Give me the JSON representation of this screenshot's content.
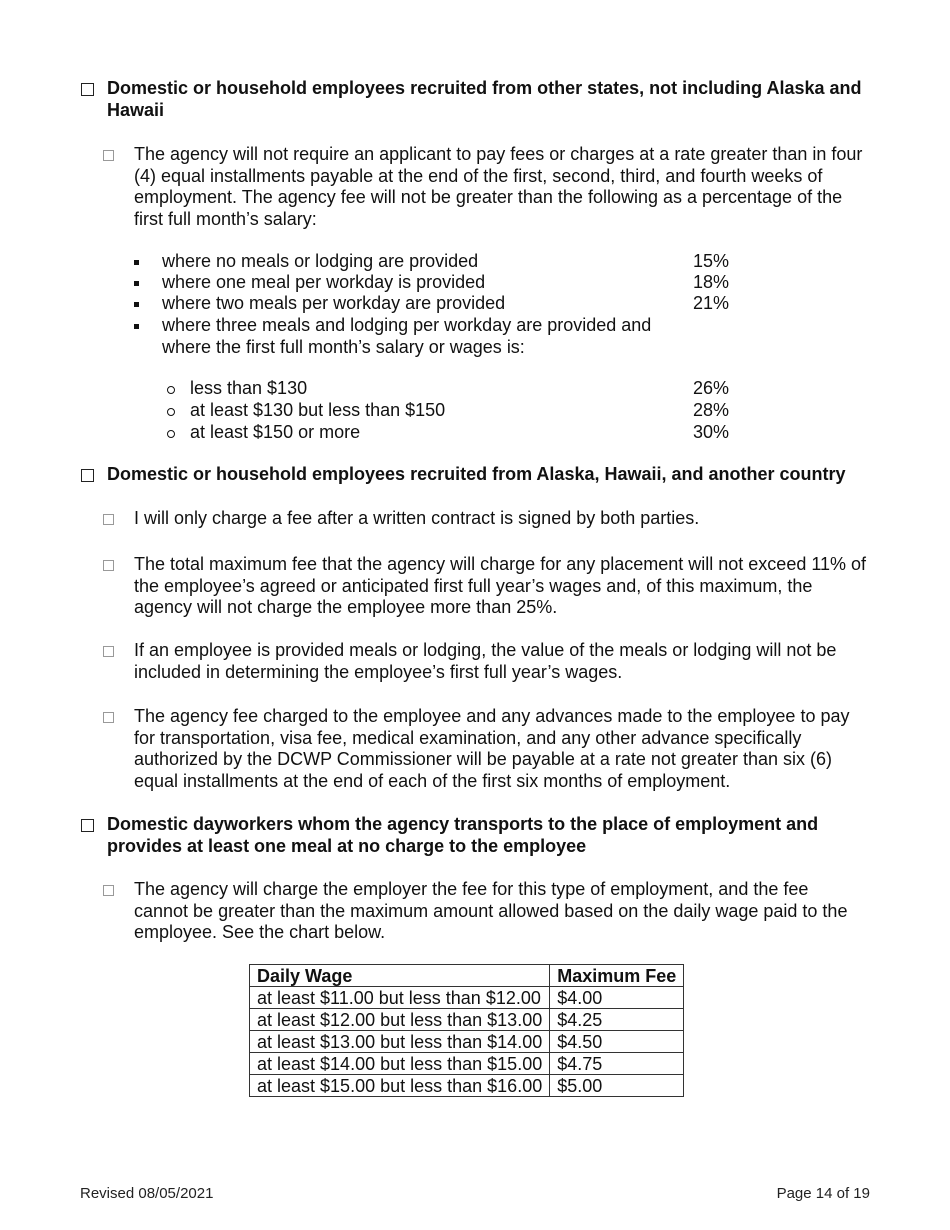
{
  "sections": [
    {
      "heading": "Domestic or household employees recruited from other states, not including Alaska and Hawaii",
      "paragraphs": [
        "The agency will not require an applicant to pay fees or charges at a rate greater than in four (4) equal installments payable at the end of the first, second, third, and fourth weeks of employment. The agency fee will not be greater than the following as a percentage of the first full month’s salary:"
      ],
      "bullets": [
        {
          "text": "where no meals or lodging are provided",
          "value": "15%"
        },
        {
          "text": "where one meal per workday is provided",
          "value": "18%"
        },
        {
          "text": "where two meals per workday are provided",
          "value": "21%"
        },
        {
          "text": "where three meals and lodging per workday are provided and where the first full month’s salary or wages is:",
          "value": ""
        }
      ],
      "sub_bullets": [
        {
          "text": "less than $130",
          "value": "26%"
        },
        {
          "text": "at least $130 but less than $150",
          "value": "28%"
        },
        {
          "text": "at least $150 or more",
          "value": "30%"
        }
      ]
    },
    {
      "heading": "Domestic or household employees recruited from Alaska, Hawaii, and another country",
      "paragraphs": [
        "I will only charge a fee after a written contract is signed by both parties.",
        "The total maximum fee that the agency will charge for any placement will not exceed 11% of the employee’s agreed or anticipated first full year’s wages and, of this maximum, the agency will not charge the employee more than 25%.",
        "If an employee is provided meals or lodging, the value of the meals or lodging will not be included in determining the employee’s first full year’s wages.",
        "The agency fee charged to the employee and any advances made to the employee to pay for transportation, visa fee, medical examination, and any other advance specifically authorized by the DCWP Commissioner will be payable at a rate not greater than six (6) equal installments at the end of each of the first six months of employment."
      ]
    },
    {
      "heading": "Domestic dayworkers whom the agency transports to the place of employment and provides at least one meal at no charge to the employee",
      "paragraphs": [
        "The agency will charge the employer the fee for this type of employment, and the fee cannot be greater than the maximum amount allowed based on the daily wage paid to the employee. See the chart below."
      ],
      "table": {
        "headers": [
          "Daily Wage",
          "Maximum Fee"
        ],
        "rows": [
          [
            "at least $11.00 but less than $12.00",
            "$4.00"
          ],
          [
            "at least $12.00 but less than $13.00",
            "$4.25"
          ],
          [
            "at least $13.00 but less than $14.00",
            "$4.50"
          ],
          [
            "at least $14.00 but less than $15.00",
            "$4.75"
          ],
          [
            "at least $15.00 but less than $16.00",
            "$5.00"
          ]
        ]
      }
    }
  ],
  "footer": {
    "revised": "Revised 08/05/2021",
    "page": "Page 14 of 19"
  }
}
